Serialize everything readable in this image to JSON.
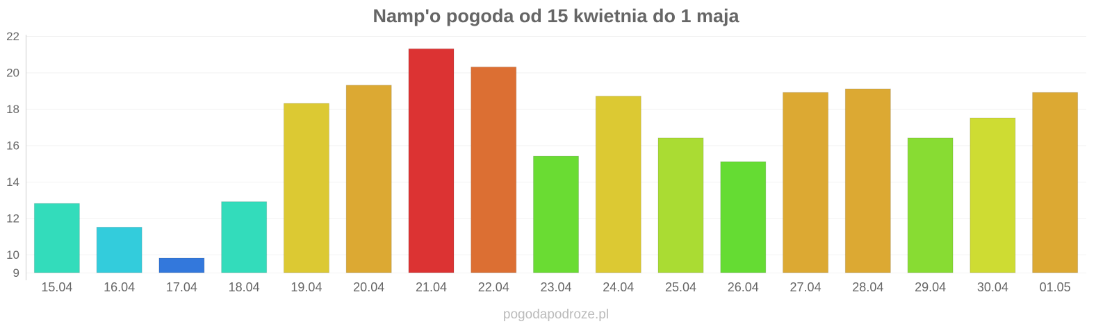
{
  "chart_data": {
    "type": "bar",
    "title": "Namp'o pogoda od 15 kwietnia do 1 maja",
    "xlabel": "",
    "ylabel": "",
    "ylim": [
      9,
      22
    ],
    "yticks": [
      9,
      10,
      12,
      14,
      16,
      18,
      20,
      22
    ],
    "grid": true,
    "categories": [
      "15.04",
      "16.04",
      "17.04",
      "18.04",
      "19.04",
      "20.04",
      "21.04",
      "22.04",
      "23.04",
      "24.04",
      "25.04",
      "26.04",
      "27.04",
      "28.04",
      "29.04",
      "30.04",
      "01.05"
    ],
    "values": [
      12.8,
      11.5,
      9.8,
      12.9,
      18.3,
      19.3,
      21.3,
      20.3,
      15.4,
      18.7,
      16.4,
      15.1,
      18.9,
      19.1,
      16.4,
      17.5,
      18.9
    ],
    "colors": [
      "#33dcbb",
      "#33ccdc",
      "#3378dc",
      "#33dcbb",
      "#dcc933",
      "#dca933",
      "#dc3333",
      "#dc6f33",
      "#6adc33",
      "#dcc933",
      "#aadc33",
      "#65dc33",
      "#dca933",
      "#dca933",
      "#88dc33",
      "#cedc33",
      "#dca933"
    ],
    "credit": "pogodapodroze.pl"
  }
}
